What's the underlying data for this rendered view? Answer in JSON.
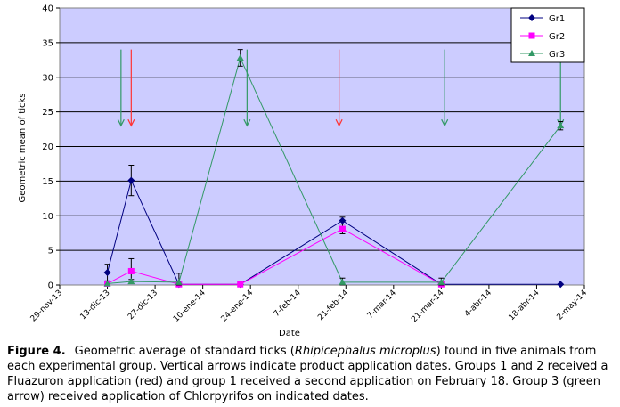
{
  "chart_data": {
    "type": "line",
    "ylabel": "Geometric mean of ticks",
    "xlabel": "Date",
    "ylim": [
      0,
      40
    ],
    "yticks": [
      0,
      5,
      10,
      15,
      20,
      25,
      30,
      35,
      40
    ],
    "x_ticks": [
      "29-nov-13",
      "13-dic-13",
      "27-dic-13",
      "10-ene-14",
      "24-ene-14",
      "7-feb-14",
      "21-feb-14",
      "7-mar-14",
      "21-mar-14",
      "4-abr-14",
      "18-abr-14",
      "2-may-14"
    ],
    "grid": "horizontal",
    "plot_background": "#ccccff",
    "legend_position": "top-right",
    "series": [
      {
        "name": "Gr1",
        "color": "#000080",
        "marker": "diamond",
        "points": [
          {
            "x": "2013-12-13",
            "y": 1.8,
            "err": 1.2
          },
          {
            "x": "2013-12-20",
            "y": 15.1,
            "err": 2.2
          },
          {
            "x": "2014-01-03",
            "y": 0.1,
            "err": 0
          },
          {
            "x": "2014-01-21",
            "y": 0.1,
            "err": 0
          },
          {
            "x": "2014-02-20",
            "y": 9.3,
            "err": 0.5
          },
          {
            "x": "2014-03-21",
            "y": 0.1,
            "err": 0
          },
          {
            "x": "2014-04-25",
            "y": 0.1,
            "err": 0
          }
        ]
      },
      {
        "name": "Gr2",
        "color": "#ff00ff",
        "marker": "square",
        "points": [
          {
            "x": "2013-12-13",
            "y": 0.2,
            "err": 0
          },
          {
            "x": "2013-12-20",
            "y": 2.0,
            "err": 1.8
          },
          {
            "x": "2014-01-03",
            "y": 0.1,
            "err": 0
          },
          {
            "x": "2014-01-21",
            "y": 0.1,
            "err": 0
          },
          {
            "x": "2014-02-20",
            "y": 8.1,
            "err": 0.7
          },
          {
            "x": "2014-03-21",
            "y": 0.1,
            "err": 0
          }
        ]
      },
      {
        "name": "Gr3",
        "color": "#339966",
        "marker": "triangle",
        "points": [
          {
            "x": "2013-12-13",
            "y": 0.2,
            "err": 0
          },
          {
            "x": "2013-12-20",
            "y": 0.5,
            "err": 0.3
          },
          {
            "x": "2014-01-03",
            "y": 0.4,
            "err": 1.3
          },
          {
            "x": "2014-01-21",
            "y": 32.8,
            "err": 1.2
          },
          {
            "x": "2014-02-20",
            "y": 0.4,
            "err": 0.6
          },
          {
            "x": "2014-03-21",
            "y": 0.4,
            "err": 0.6
          },
          {
            "x": "2014-04-25",
            "y": 23.0,
            "err": 0.6
          }
        ]
      }
    ],
    "arrows": [
      {
        "x": "2013-12-17",
        "color": "#339966"
      },
      {
        "x": "2013-12-20",
        "color": "#ff3333"
      },
      {
        "x": "2014-01-23",
        "color": "#339966"
      },
      {
        "x": "2014-02-19",
        "color": "#ff3333"
      },
      {
        "x": "2014-03-22",
        "color": "#339966"
      },
      {
        "x": "2014-04-25",
        "color": "#339966"
      }
    ],
    "arrow_range": [
      34,
      23
    ]
  },
  "caption": {
    "label": "Figure 4",
    "text": "Geometric average of standard ticks (Rhipicephalus microplus) found in five animals from each experimental group. Vertical arrows indicate product application dates. Groups 1 and 2 received a Fluazuron application (red) and group 1 received a second application on February 18. Group 3 (green arrow) received application of Chlorpyrifos on indicated dates."
  }
}
